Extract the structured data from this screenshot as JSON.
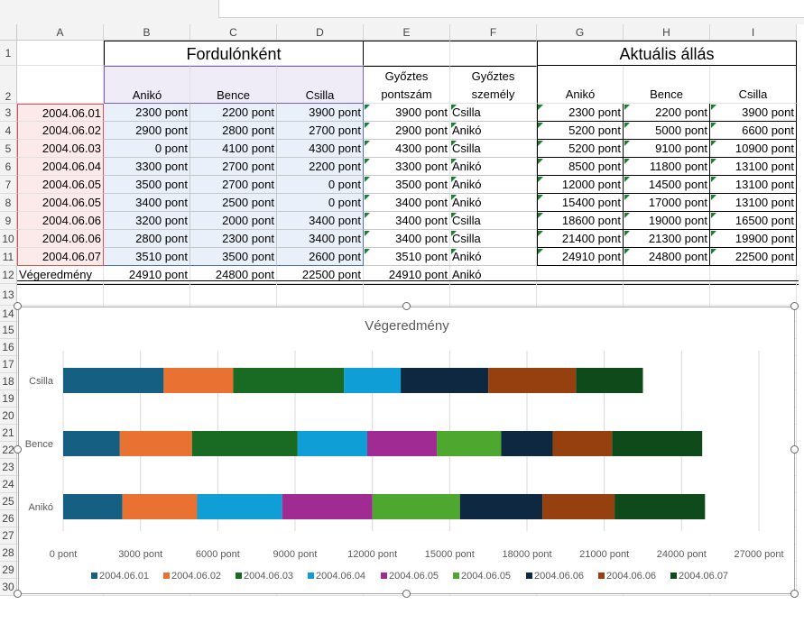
{
  "columns": [
    "A",
    "B",
    "C",
    "D",
    "E",
    "F",
    "G",
    "H",
    "I"
  ],
  "rows": [
    "1",
    "2",
    "3",
    "4",
    "5",
    "6",
    "7",
    "8",
    "9",
    "10",
    "11",
    "12",
    "13",
    "14",
    "15",
    "16",
    "17",
    "18",
    "19",
    "20",
    "21",
    "22",
    "23",
    "24",
    "25",
    "26",
    "27",
    "28",
    "29",
    "30"
  ],
  "header": {
    "group1": "Fordulónként",
    "group2": "Aktuális állás",
    "players": [
      "Anikó",
      "Bence",
      "Csilla"
    ],
    "winner_points": "Győztes pontszám",
    "winner_person": "Győztes személy"
  },
  "table": [
    {
      "date": "2004.06.01",
      "b": "2300 pont",
      "c": "2200 pont",
      "d": "3900 pont",
      "e": "3900 pont",
      "f": "Csilla",
      "g": "2300 pont",
      "h": "2200 pont",
      "i": "3900 pont"
    },
    {
      "date": "2004.06.02",
      "b": "2900 pont",
      "c": "2800 pont",
      "d": "2700 pont",
      "e": "2900 pont",
      "f": "Anikó",
      "g": "5200 pont",
      "h": "5000 pont",
      "i": "6600 pont"
    },
    {
      "date": "2004.06.03",
      "b": "0 pont",
      "c": "4100 pont",
      "d": "4300 pont",
      "e": "4300 pont",
      "f": "Csilla",
      "g": "5200 pont",
      "h": "9100 pont",
      "i": "10900 pont"
    },
    {
      "date": "2004.06.04",
      "b": "3300 pont",
      "c": "2700 pont",
      "d": "2200 pont",
      "e": "3300 pont",
      "f": "Anikó",
      "g": "8500 pont",
      "h": "11800 pont",
      "i": "13100 pont"
    },
    {
      "date": "2004.06.05",
      "b": "3500 pont",
      "c": "2700 pont",
      "d": "0 pont",
      "e": "3500 pont",
      "f": "Anikó",
      "g": "12000 pont",
      "h": "14500 pont",
      "i": "13100 pont"
    },
    {
      "date": "2004.06.05",
      "b": "3400 pont",
      "c": "2500 pont",
      "d": "0 pont",
      "e": "3400 pont",
      "f": "Anikó",
      "g": "15400 pont",
      "h": "17000 pont",
      "i": "13100 pont"
    },
    {
      "date": "2004.06.06",
      "b": "3200 pont",
      "c": "2000 pont",
      "d": "3400 pont",
      "e": "3400 pont",
      "f": "Csilla",
      "g": "18600 pont",
      "h": "19000 pont",
      "i": "16500 pont"
    },
    {
      "date": "2004.06.06",
      "b": "2800 pont",
      "c": "2300 pont",
      "d": "3400 pont",
      "e": "3400 pont",
      "f": "Csilla",
      "g": "21400 pont",
      "h": "21300 pont",
      "i": "19900 pont"
    },
    {
      "date": "2004.06.07",
      "b": "3510 pont",
      "c": "3500 pont",
      "d": "2600 pont",
      "e": "3510 pont",
      "f": "Anikó",
      "g": "24910 pont",
      "h": "24800 pont",
      "i": "22500 pont"
    }
  ],
  "total": {
    "label": "Végeredmény",
    "b": "24910 pont",
    "c": "24800 pont",
    "d": "22500 pont",
    "e": "24910 pont",
    "f": "Anikó"
  },
  "chart_data": {
    "type": "bar",
    "orientation": "horizontal-stacked",
    "title": "Végeredmény",
    "categories": [
      "Anikó",
      "Bence",
      "Csilla"
    ],
    "tick_labels": [
      "0 pont",
      "3000 pont",
      "6000 pont",
      "9000 pont",
      "12000 pont",
      "15000 pont",
      "18000 pont",
      "21000 pont",
      "24000 pont",
      "27000 pont"
    ],
    "xlim": [
      0,
      27000
    ],
    "grid": true,
    "legend_position": "bottom",
    "series": [
      {
        "name": "2004.06.01",
        "color": "#156082",
        "values": [
          2300,
          2200,
          3900
        ]
      },
      {
        "name": "2004.06.02",
        "color": "#e97132",
        "values": [
          2900,
          2800,
          2700
        ]
      },
      {
        "name": "2004.06.03",
        "color": "#196b24",
        "values": [
          0,
          4100,
          4300
        ]
      },
      {
        "name": "2004.06.04",
        "color": "#0f9ed5",
        "values": [
          3300,
          2700,
          2200
        ]
      },
      {
        "name": "2004.06.05",
        "color": "#a02b93",
        "values": [
          3500,
          2700,
          0
        ]
      },
      {
        "name": "2004.06.05",
        "color": "#4ea72e",
        "values": [
          3400,
          2500,
          0
        ]
      },
      {
        "name": "2004.06.06",
        "color": "#0e2841",
        "values": [
          3200,
          2000,
          3400
        ]
      },
      {
        "name": "2004.06.06",
        "color": "#964010",
        "values": [
          2800,
          2300,
          3400
        ]
      },
      {
        "name": "2004.06.07",
        "color": "#0f4a1a",
        "values": [
          3510,
          3500,
          2600
        ]
      }
    ]
  }
}
